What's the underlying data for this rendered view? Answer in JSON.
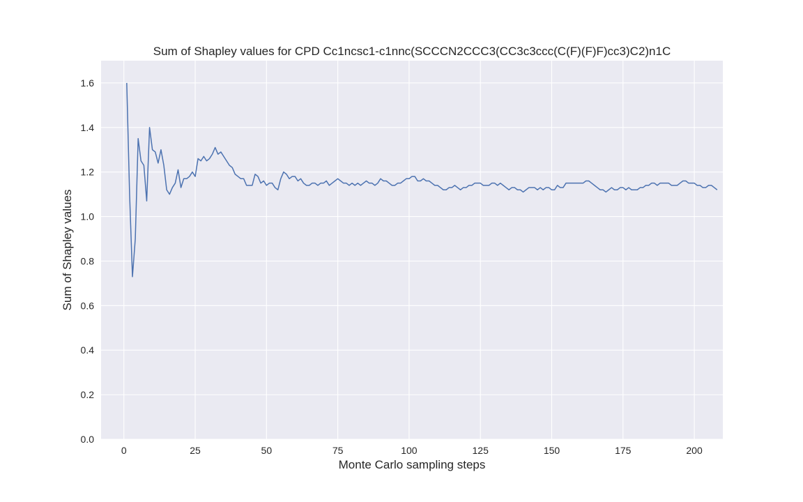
{
  "chart_data": {
    "type": "line",
    "title": "Sum of Shapley values for CPD Cc1ncsc1-c1nnc(SCCCN2CCC3(CC3c3ccc(C(F)(F)F)cc3)C2)n1C",
    "xlabel": "Monte Carlo sampling steps",
    "ylabel": "Sum of Shapley values",
    "xlim": [
      -8,
      210
    ],
    "ylim": [
      0.0,
      1.7
    ],
    "xticks": [
      0,
      25,
      50,
      75,
      100,
      125,
      150,
      175,
      200
    ],
    "yticks": [
      0.0,
      0.2,
      0.4,
      0.6,
      0.8,
      1.0,
      1.2,
      1.4,
      1.6
    ],
    "grid": true,
    "colors": {
      "background": "#eaeaf2",
      "grid": "#ffffff",
      "line": "#4c72b0"
    },
    "series": [
      {
        "x_start": 1,
        "x_step": 1,
        "values": [
          1.6,
          1.1,
          0.73,
          0.9,
          1.35,
          1.25,
          1.23,
          1.07,
          1.4,
          1.3,
          1.29,
          1.24,
          1.3,
          1.23,
          1.12,
          1.1,
          1.13,
          1.15,
          1.21,
          1.13,
          1.17,
          1.17,
          1.18,
          1.2,
          1.18,
          1.26,
          1.25,
          1.27,
          1.25,
          1.26,
          1.28,
          1.31,
          1.28,
          1.29,
          1.27,
          1.25,
          1.23,
          1.22,
          1.19,
          1.18,
          1.17,
          1.17,
          1.14,
          1.14,
          1.14,
          1.19,
          1.18,
          1.15,
          1.16,
          1.14,
          1.15,
          1.15,
          1.13,
          1.12,
          1.17,
          1.2,
          1.19,
          1.17,
          1.18,
          1.18,
          1.16,
          1.17,
          1.15,
          1.14,
          1.14,
          1.15,
          1.15,
          1.14,
          1.15,
          1.15,
          1.16,
          1.14,
          1.15,
          1.16,
          1.17,
          1.16,
          1.15,
          1.15,
          1.14,
          1.15,
          1.14,
          1.15,
          1.14,
          1.15,
          1.16,
          1.15,
          1.15,
          1.14,
          1.15,
          1.17,
          1.16,
          1.16,
          1.15,
          1.14,
          1.14,
          1.15,
          1.15,
          1.16,
          1.17,
          1.17,
          1.18,
          1.18,
          1.16,
          1.16,
          1.17,
          1.16,
          1.16,
          1.15,
          1.14,
          1.14,
          1.13,
          1.12,
          1.12,
          1.13,
          1.13,
          1.14,
          1.13,
          1.12,
          1.13,
          1.13,
          1.14,
          1.14,
          1.15,
          1.15,
          1.15,
          1.14,
          1.14,
          1.14,
          1.15,
          1.15,
          1.14,
          1.15,
          1.14,
          1.13,
          1.12,
          1.13,
          1.13,
          1.12,
          1.12,
          1.11,
          1.12,
          1.13,
          1.13,
          1.13,
          1.12,
          1.13,
          1.12,
          1.13,
          1.13,
          1.12,
          1.12,
          1.14,
          1.13,
          1.13,
          1.15,
          1.15,
          1.15,
          1.15,
          1.15,
          1.15,
          1.15,
          1.16,
          1.16,
          1.15,
          1.14,
          1.13,
          1.12,
          1.12,
          1.11,
          1.12,
          1.13,
          1.12,
          1.12,
          1.13,
          1.13,
          1.12,
          1.13,
          1.12,
          1.12,
          1.12,
          1.13,
          1.13,
          1.14,
          1.14,
          1.15,
          1.15,
          1.14,
          1.15,
          1.15,
          1.15,
          1.15,
          1.14,
          1.14,
          1.14,
          1.15,
          1.16,
          1.16,
          1.15,
          1.15,
          1.15,
          1.14,
          1.14,
          1.13,
          1.13,
          1.14,
          1.14,
          1.13,
          1.12
        ]
      }
    ]
  }
}
